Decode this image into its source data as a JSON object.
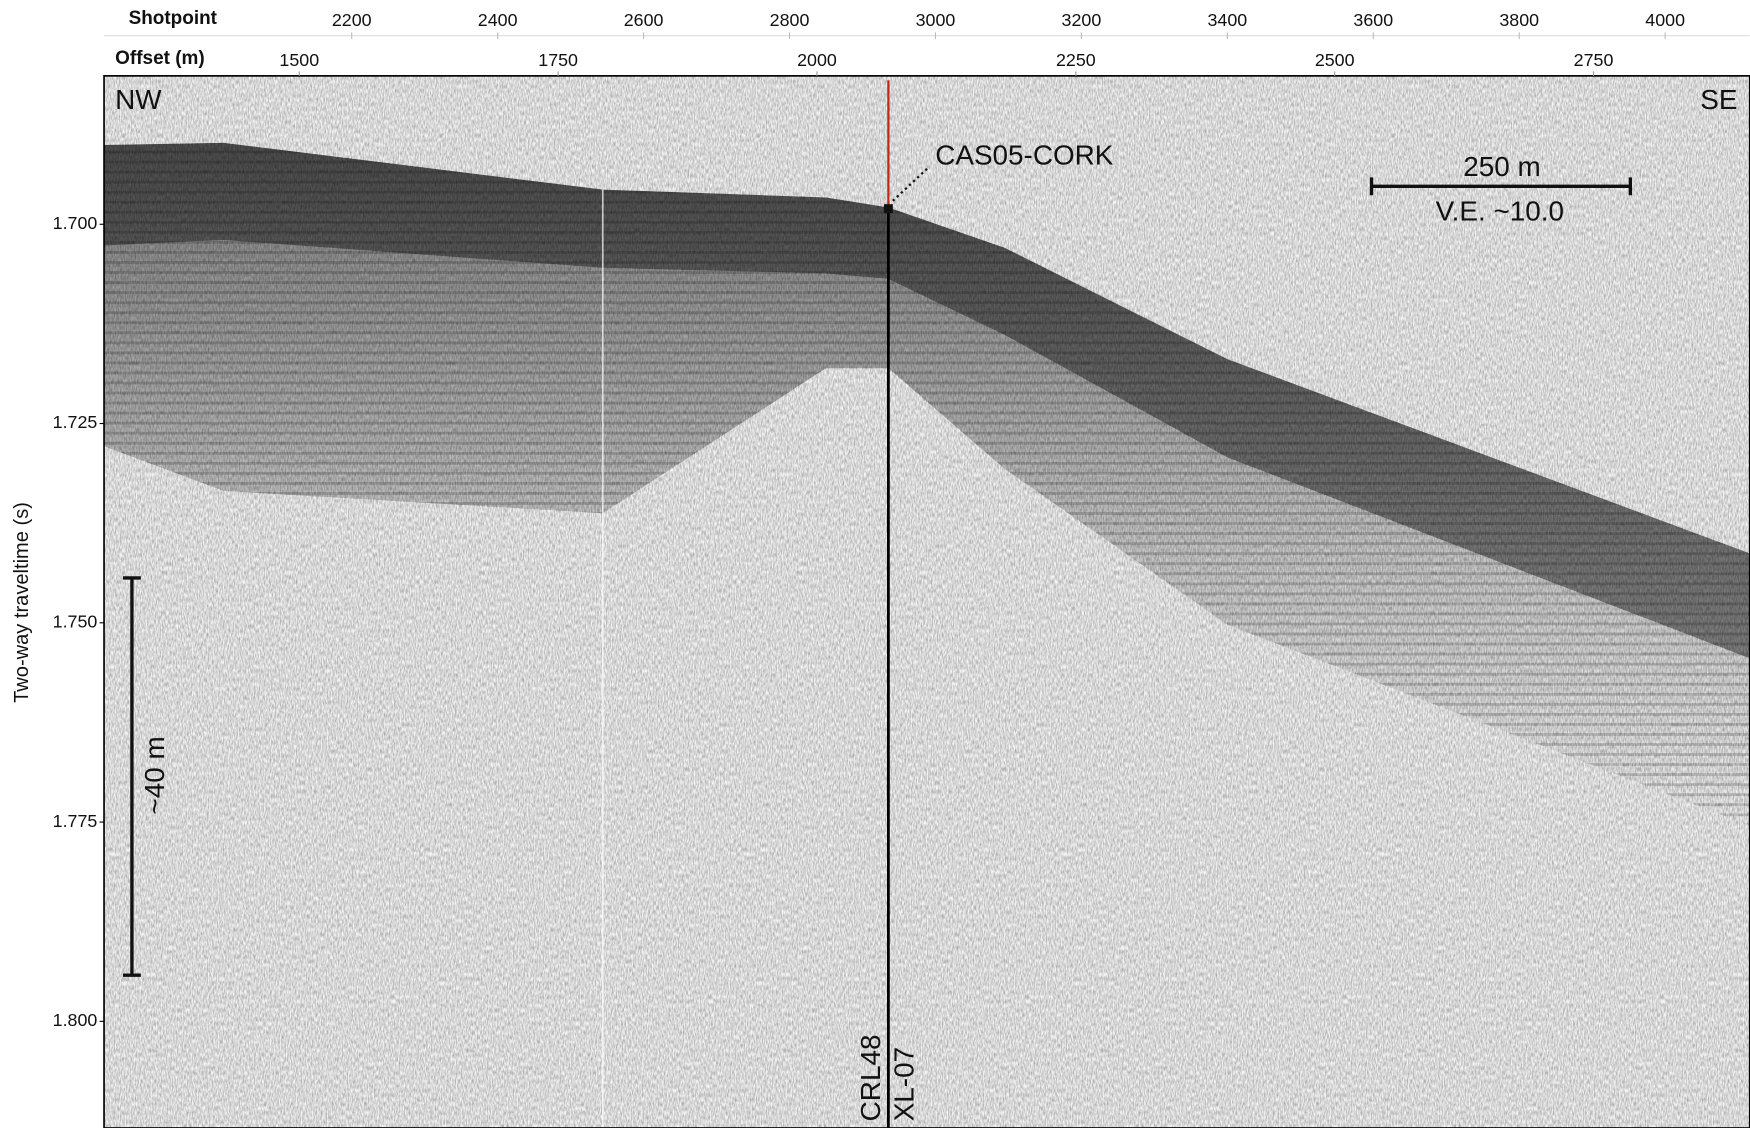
{
  "header": {
    "shotpoint_label": "Shotpoint",
    "shotpoint_ticks": [
      2200,
      2400,
      2600,
      2800,
      3000,
      3200,
      3400,
      3600,
      3800,
      4000
    ],
    "offset_label": "Offset (m)",
    "offset_ticks": [
      1500,
      1750,
      2000,
      2250,
      2500,
      2750
    ]
  },
  "y_axis": {
    "label": "Two-way traveltime (s)",
    "ticks": [
      {
        "value": 1.7,
        "label": "1.700"
      },
      {
        "value": 1.725,
        "label": "1.725"
      },
      {
        "value": 1.75,
        "label": "1.750"
      },
      {
        "value": 1.775,
        "label": "1.775"
      },
      {
        "value": 1.8,
        "label": "1.800"
      }
    ]
  },
  "annotations": {
    "nw": "NW",
    "se": "SE",
    "well": "CAS05-CORK",
    "scale_horizontal": "250 m",
    "vertical_exaggeration": "V.E. ~10.0",
    "scale_vertical": "~40 m",
    "line_a": "CRL48",
    "line_b": "XL-07"
  }
}
